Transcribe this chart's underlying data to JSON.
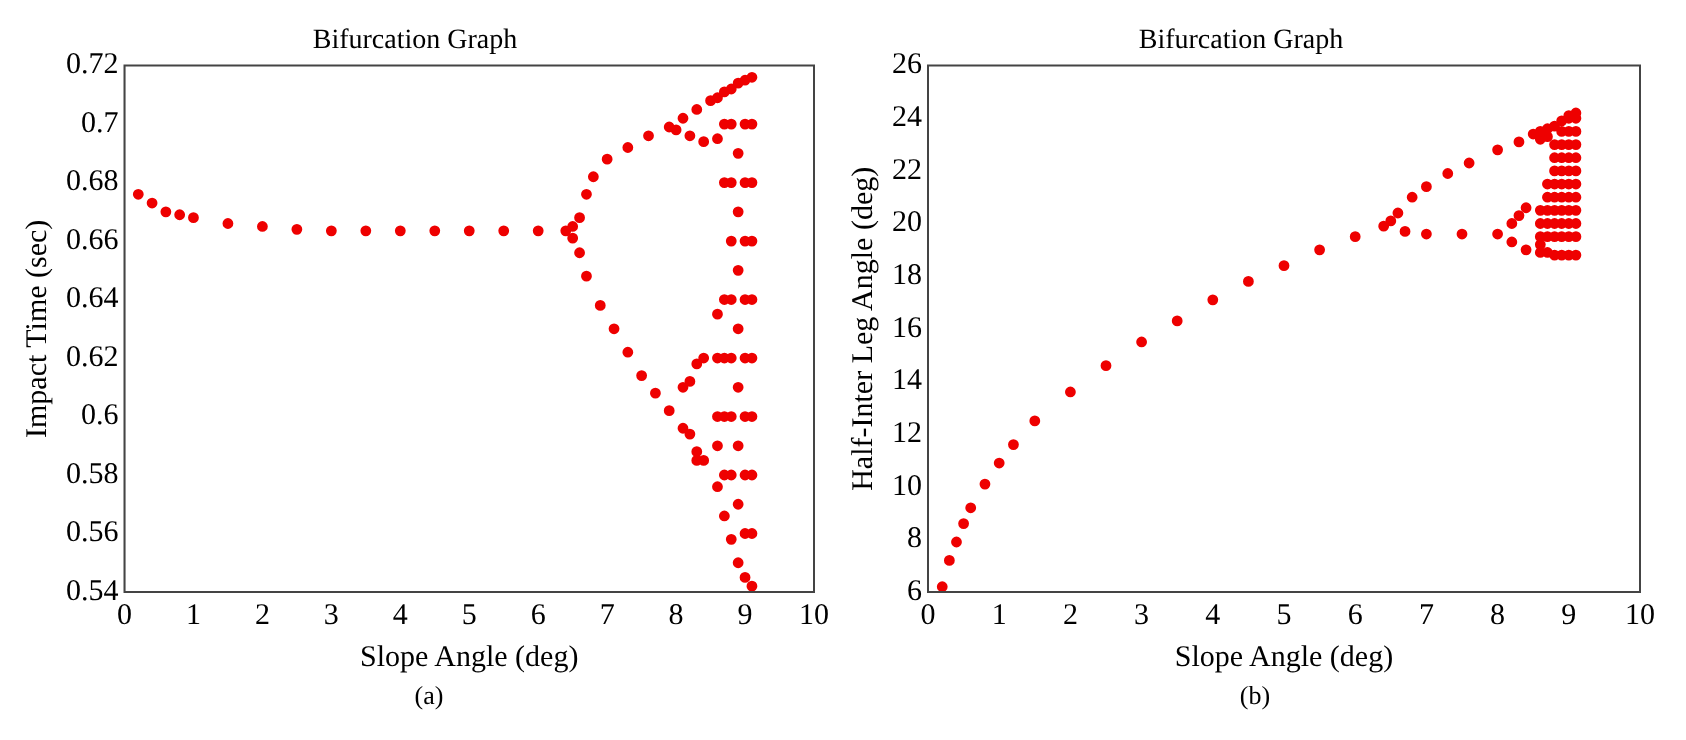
{
  "chart_data": [
    {
      "type": "scatter",
      "title": "Bifurcation Graph",
      "xlabel": "Slope Angle (deg)",
      "ylabel": "Impact Time (sec)",
      "annotations": [
        "(a)"
      ],
      "color": "#ee0000",
      "marker": "circle",
      "grid": false,
      "xlim": [
        0,
        10
      ],
      "xticks": [
        0,
        1,
        2,
        3,
        4,
        5,
        6,
        7,
        8,
        9,
        10
      ],
      "ylim": [
        0.54,
        0.72
      ],
      "yticks": [
        0.54,
        0.56,
        0.58,
        0.6,
        0.62,
        0.64,
        0.66,
        0.68,
        0.7,
        0.72
      ],
      "x": [
        0.2,
        0.4,
        0.6,
        0.8,
        1,
        1.5,
        2,
        2.5,
        3,
        3.5,
        4,
        4.5,
        5,
        5.5,
        6,
        6.4,
        6.5,
        6.5,
        6.6,
        6.7,
        6.8,
        7,
        7.3,
        7.6,
        7.9,
        8.1,
        8.3,
        8.5,
        8.0,
        8.2,
        8.4,
        6.6,
        6.7,
        6.9,
        7.1,
        7.3,
        7.5,
        7.7,
        7.9,
        8.1,
        8.3,
        8.4,
        8.1,
        8.2,
        8.3,
        8.4,
        8.2,
        8.3,
        8.6,
        8.6,
        8.6,
        8.6,
        8.6,
        8.6,
        8.6,
        8.7,
        8.7,
        8.7,
        8.7,
        8.7,
        8.7,
        8.7,
        8.7,
        8.8,
        8.8,
        8.8,
        8.8,
        8.8,
        8.8,
        8.8,
        8.8,
        8.8,
        8.9,
        8.9,
        8.9,
        8.9,
        8.9,
        8.9,
        8.9,
        8.9,
        8.9,
        9.0,
        9.0,
        9.0,
        9.0,
        9.0,
        9.0,
        9.0,
        9.0,
        9.0,
        9.0,
        9.1,
        9.1,
        9.1,
        9.1,
        9.1,
        9.1,
        9.1,
        9.1,
        9.1,
        9.1
      ],
      "values": [
        0.676,
        0.673,
        0.67,
        0.669,
        0.668,
        0.666,
        0.665,
        0.664,
        0.6635,
        0.6635,
        0.6635,
        0.6635,
        0.6635,
        0.6635,
        0.6635,
        0.6635,
        0.665,
        0.661,
        0.668,
        0.676,
        0.682,
        0.688,
        0.692,
        0.696,
        0.699,
        0.702,
        0.705,
        0.708,
        0.698,
        0.696,
        0.694,
        0.656,
        0.648,
        0.638,
        0.63,
        0.622,
        0.614,
        0.608,
        0.602,
        0.596,
        0.588,
        0.585,
        0.61,
        0.612,
        0.618,
        0.62,
        0.594,
        0.585,
        0.576,
        0.59,
        0.6,
        0.62,
        0.635,
        0.695,
        0.709,
        0.566,
        0.58,
        0.6,
        0.62,
        0.64,
        0.68,
        0.7,
        0.711,
        0.558,
        0.58,
        0.6,
        0.62,
        0.64,
        0.66,
        0.68,
        0.7,
        0.712,
        0.55,
        0.57,
        0.59,
        0.61,
        0.63,
        0.65,
        0.67,
        0.69,
        0.714,
        0.545,
        0.56,
        0.58,
        0.6,
        0.62,
        0.64,
        0.66,
        0.68,
        0.7,
        0.715,
        0.542,
        0.56,
        0.58,
        0.6,
        0.62,
        0.64,
        0.66,
        0.68,
        0.7,
        0.716
      ]
    },
    {
      "type": "scatter",
      "title": "Bifurcation Graph",
      "xlabel": "Slope Angle (deg)",
      "ylabel": "Half-Inter Leg Angle (deg)",
      "annotations": [
        "(b)"
      ],
      "color": "#ee0000",
      "marker": "circle",
      "grid": false,
      "xlim": [
        0,
        10
      ],
      "xticks": [
        0,
        1,
        2,
        3,
        4,
        5,
        6,
        7,
        8,
        9,
        10
      ],
      "ylim": [
        6,
        26
      ],
      "yticks": [
        6,
        8,
        10,
        12,
        14,
        16,
        18,
        20,
        22,
        24,
        26
      ],
      "x": [
        0.2,
        0.3,
        0.4,
        0.5,
        0.6,
        0.8,
        1,
        1.2,
        1.5,
        2,
        2.5,
        3,
        3.5,
        4,
        4.5,
        5,
        5.5,
        6,
        6.4,
        6.5,
        6.6,
        6.8,
        7,
        7.3,
        7.6,
        8,
        8.3,
        8.5,
        6.7,
        7,
        7.5,
        8,
        8.2,
        8.4,
        8.2,
        8.3,
        8.4,
        8.6,
        8.6,
        8.6,
        8.6,
        8.6,
        8.6,
        8.6,
        8.7,
        8.7,
        8.7,
        8.7,
        8.7,
        8.7,
        8.7,
        8.7,
        8.8,
        8.8,
        8.8,
        8.8,
        8.8,
        8.8,
        8.8,
        8.8,
        8.8,
        8.8,
        8.9,
        8.9,
        8.9,
        8.9,
        8.9,
        8.9,
        8.9,
        8.9,
        8.9,
        8.9,
        8.9,
        9.0,
        9.0,
        9.0,
        9.0,
        9.0,
        9.0,
        9.0,
        9.0,
        9.0,
        9.0,
        9.0,
        9.0,
        9.1,
        9.1,
        9.1,
        9.1,
        9.1,
        9.1,
        9.1,
        9.1,
        9.1,
        9.1,
        9.1,
        9.1
      ],
      "values": [
        6.2,
        7.2,
        7.9,
        8.6,
        9.2,
        10.1,
        10.9,
        11.6,
        12.5,
        13.6,
        14.6,
        15.5,
        16.3,
        17.1,
        17.8,
        18.4,
        19.0,
        19.5,
        19.9,
        20.1,
        20.4,
        21.0,
        21.4,
        21.9,
        22.3,
        22.8,
        23.1,
        23.4,
        19.7,
        19.6,
        19.6,
        19.6,
        19.3,
        19.0,
        20.0,
        20.3,
        20.6,
        18.9,
        19.2,
        19.5,
        20,
        20.5,
        23.2,
        23.5,
        18.9,
        19.5,
        20,
        20.5,
        21,
        21.5,
        23.3,
        23.6,
        18.8,
        19.5,
        20,
        20.5,
        21,
        21.5,
        22,
        22.5,
        23,
        23.7,
        18.8,
        19.5,
        20,
        20.5,
        21,
        21.5,
        22,
        22.5,
        23,
        23.5,
        23.9,
        18.8,
        19.5,
        20,
        20.5,
        21,
        21.5,
        22,
        22.5,
        23,
        23.5,
        24,
        24.1,
        18.8,
        19.5,
        20,
        20.5,
        21,
        21.5,
        22,
        22.5,
        23,
        23.5,
        24,
        24.2
      ]
    }
  ]
}
